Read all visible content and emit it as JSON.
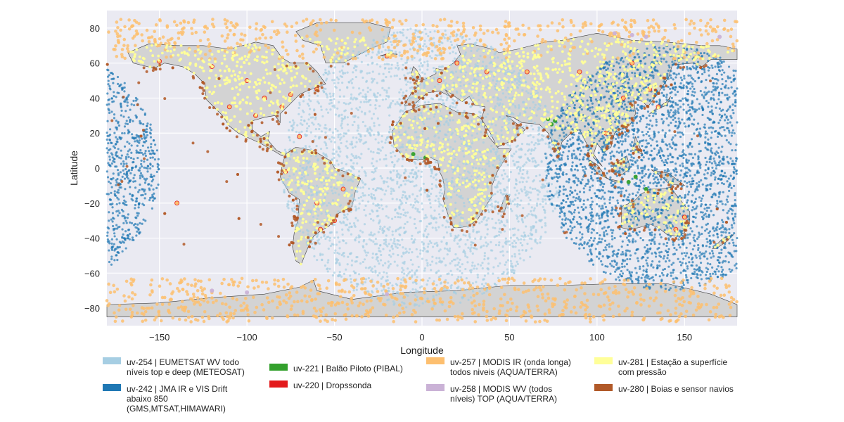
{
  "chart_data": {
    "type": "scatter",
    "xlabel": "Longitude",
    "ylabel": "Latitude",
    "xlim": [
      -180,
      180
    ],
    "ylim": [
      -90,
      90
    ],
    "xticks": [
      -150,
      -100,
      -50,
      0,
      50,
      100,
      150
    ],
    "yticks": [
      -80,
      -60,
      -40,
      -20,
      0,
      20,
      40,
      60,
      80
    ],
    "grid": true,
    "legend_position": "bottom",
    "series": [
      {
        "name": "uv-254 | EUMETSAT WV todo\nníveis top e deep (METEOSAT)",
        "color": "#a6cee3",
        "regions": [
          {
            "kind": "disk",
            "center": [
              0,
              0
            ],
            "radius_deg": 80
          }
        ]
      },
      {
        "name": "uv-242 | JMA IR e VIS Drift\nabaixo 850\n(GMS,MTSAT,HIMAWARI)",
        "color": "#1f78b4",
        "regions": [
          {
            "kind": "disk",
            "center": [
              140,
              0
            ],
            "radius_deg": 70
          }
        ]
      },
      {
        "name": "uv-221 | Balão Piloto (PIBAL)",
        "color": "#33a02c",
        "points": [
          [
            72,
            28
          ],
          [
            74,
            25
          ],
          [
            76,
            27
          ],
          [
            -5,
            8
          ],
          [
            2,
            6
          ],
          [
            122,
            -5
          ],
          [
            118,
            -8
          ],
          [
            128,
            -12
          ]
        ]
      },
      {
        "name": "uv-220 | Dropssonda",
        "color": "#e31a1c",
        "points": [
          [
            -120,
            58
          ],
          [
            -100,
            50
          ],
          [
            -90,
            40
          ],
          [
            -80,
            35
          ],
          [
            -75,
            42
          ],
          [
            -60,
            45
          ],
          [
            -110,
            35
          ],
          [
            -95,
            30
          ],
          [
            -150,
            61
          ],
          [
            -70,
            18
          ],
          [
            -50,
            -30
          ],
          [
            -60,
            -20
          ],
          [
            -58,
            -35
          ],
          [
            -45,
            -12
          ],
          [
            -78,
            -2
          ],
          [
            10,
            50
          ],
          [
            20,
            60
          ],
          [
            37,
            55
          ],
          [
            60,
            55
          ],
          [
            90,
            55
          ],
          [
            115,
            40
          ],
          [
            135,
            35
          ],
          [
            105,
            20
          ],
          [
            130,
            45
          ],
          [
            145,
            -35
          ],
          [
            150,
            -28
          ],
          [
            120,
            60
          ],
          [
            -20,
            64
          ],
          [
            -140,
            -20
          ]
        ]
      },
      {
        "name": "uv-257 | MODIS IR (onda longa)\ntodos niveis (AQUA/TERRA)",
        "color": "#fdbf6f",
        "regions": [
          {
            "kind": "band",
            "lat": [
              62,
              85
            ],
            "lon": [
              -180,
              180
            ]
          },
          {
            "kind": "band",
            "lat": [
              -88,
              -63
            ],
            "lon": [
              -180,
              180
            ]
          }
        ]
      },
      {
        "name": "uv-258 | MODIS WV (todos\nníveis) TOP (AQUA/TERRA)",
        "color": "#cab2d6",
        "points": [
          [
            110,
            77
          ],
          [
            120,
            76
          ],
          [
            128,
            75
          ],
          [
            170,
            75
          ],
          [
            -120,
            -70
          ],
          [
            -100,
            -71
          ],
          [
            -20,
            -72
          ]
        ]
      },
      {
        "name": "uv-281 | Estação a superfície\ncom pressão",
        "color": "#ffff99",
        "regions": [
          {
            "kind": "land",
            "lat": [
              -55,
              75
            ],
            "lon": [
              -180,
              180
            ]
          }
        ]
      },
      {
        "name": "uv-280 | Boias e sensor navios",
        "color": "#b15928",
        "regions": [
          {
            "kind": "coast",
            "lat": [
              -45,
              60
            ],
            "lon": [
              -180,
              180
            ]
          }
        ]
      }
    ]
  }
}
